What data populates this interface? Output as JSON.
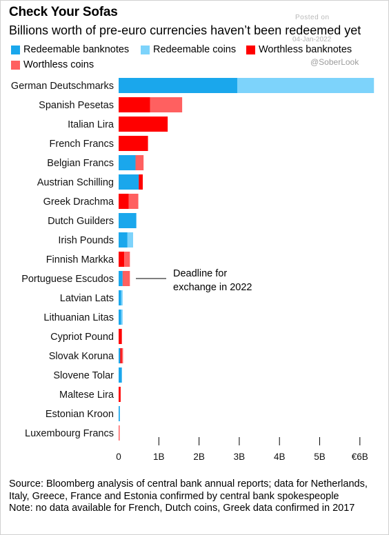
{
  "header": {
    "title": "Check Your Sofas",
    "subtitle": "Billions worth of pre-euro currencies haven’t been redeemed yet"
  },
  "watermark": {
    "posted": "Posted on",
    "date": "04-Jan-2022",
    "handle": "@SoberLook"
  },
  "annotation": {
    "text_line1": "Deadline for",
    "text_line2": "exchange in 2022"
  },
  "footer": {
    "source": "Source: Bloomberg analysis of central bank annual reports; data for Netherlands, Italy, Greece, France and Estonia confirmed by central bank spokespeople",
    "note": "Note: no data available for French, Dutch coins, Greek data confirmed in 2017"
  },
  "chart_data": {
    "type": "bar",
    "orientation": "horizontal",
    "stacked": true,
    "title": "Check Your Sofas",
    "subtitle": "Billions worth of pre-euro currencies haven’t been redeemed yet",
    "xlim": [
      0,
      6.2
    ],
    "ticks": [
      0,
      1,
      2,
      3,
      4,
      5,
      6
    ],
    "tick_labels": [
      "0",
      "1B",
      "2B",
      "3B",
      "4B",
      "5B",
      "€6B"
    ],
    "legend_position": "top-left",
    "grid": false,
    "categories": [
      "German Deutschmarks",
      "Spanish Pesetas",
      "Italian Lira",
      "French Francs",
      "Belgian Francs",
      "Austrian Schilling",
      "Greek Drachma",
      "Dutch Guilders",
      "Irish Pounds",
      "Finnish Markka",
      "Portuguese Escudos",
      "Latvian Lats",
      "Lithuanian Litas",
      "Cypriot Pound",
      "Slovak Koruna",
      "Slovene Tolar",
      "Maltese Lira",
      "Estonian Kroon",
      "Luxembourg Francs"
    ],
    "series": [
      {
        "name": "Redeemable banknotes",
        "color": "#1aa7ec",
        "values": [
          2.95,
          0,
          0,
          0,
          0.42,
          0.5,
          0,
          0.44,
          0.22,
          0,
          0.1,
          0.06,
          0.06,
          0,
          0.04,
          0.08,
          0,
          0.03,
          0
        ]
      },
      {
        "name": "Redeemable coins",
        "color": "#7dd3fb",
        "values": [
          3.4,
          0,
          0,
          0,
          0,
          0,
          0,
          0,
          0.14,
          0,
          0,
          0.04,
          0.04,
          0,
          0,
          0,
          0,
          0,
          0
        ]
      },
      {
        "name": "Worthless banknotes",
        "color": "#ff0000",
        "values": [
          0,
          0.78,
          1.22,
          0.73,
          0,
          0.1,
          0.25,
          0,
          0,
          0.14,
          0,
          0,
          0,
          0.08,
          0.04,
          0,
          0.05,
          0,
          0
        ]
      },
      {
        "name": "Worthless coins",
        "color": "#ff6060",
        "values": [
          0,
          0.8,
          0,
          0,
          0.2,
          0,
          0.24,
          0,
          0,
          0.14,
          0.18,
          0,
          0,
          0,
          0.03,
          0,
          0,
          0,
          0.02
        ]
      }
    ]
  }
}
